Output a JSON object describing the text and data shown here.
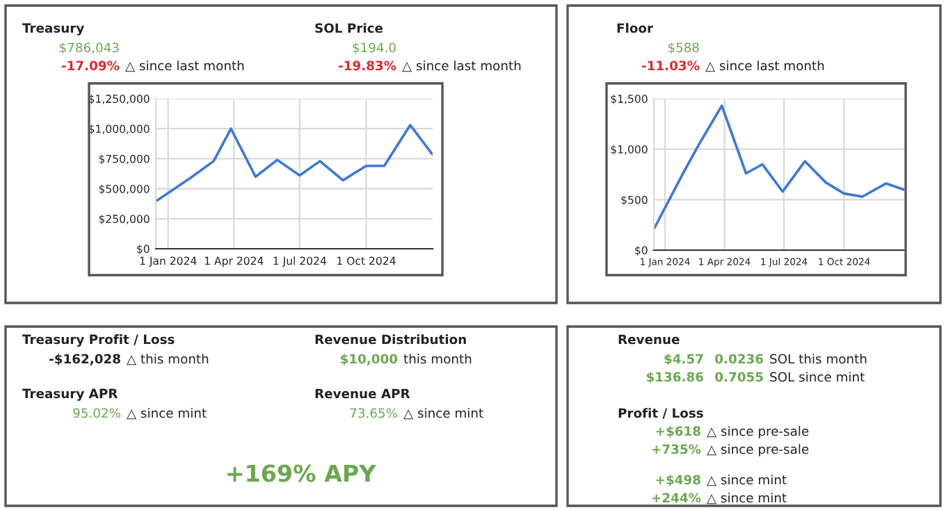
{
  "chart_data": [
    {
      "type": "line",
      "title": "Treasury",
      "annotations": [
        "$786,043",
        "-17.09%",
        "△ since last month",
        "SOL Price",
        "$194.0",
        "-19.83%",
        "△ since last month"
      ],
      "x": [
        "2023-12-16",
        "2024-02-01",
        "2024-03-04",
        "2024-03-28",
        "2024-05-01",
        "2024-05-31",
        "2024-07-01",
        "2024-07-29",
        "2024-08-30",
        "2024-10-01",
        "2024-10-26",
        "2024-12-01",
        "2024-12-31"
      ],
      "series": [
        {
          "color": "#3c78d8",
          "values": [
            400000,
            590000,
            730000,
            1000000,
            600000,
            740000,
            610000,
            730000,
            570000,
            690000,
            690000,
            1030000,
            790000
          ]
        }
      ],
      "xlim": [
        "2023-12-15",
        "2025-01-01"
      ],
      "xticks": [
        {
          "value": "2024-01-01",
          "label": "1 Jan 2024"
        },
        {
          "value": "2024-04-01",
          "label": "1 Apr 2024"
        },
        {
          "value": "2024-07-01",
          "label": "1 Jul 2024"
        },
        {
          "value": "2024-10-01",
          "label": "1 Oct 2024"
        }
      ],
      "ylim": [
        0,
        1250000
      ],
      "yticks": [
        {
          "value": 0,
          "label": "$0"
        },
        {
          "value": 250000,
          "label": "$250,000"
        },
        {
          "value": 500000,
          "label": "$500,000"
        },
        {
          "value": 750000,
          "label": "$750,000"
        },
        {
          "value": 1000000,
          "label": "$1,000,000"
        },
        {
          "value": 1250000,
          "label": "$1,250,000"
        }
      ],
      "grid": true,
      "legend": false
    },
    {
      "type": "line",
      "title": "Floor",
      "annotations": [
        "$588",
        "-11.03%",
        "△ since last month"
      ],
      "x": [
        "2023-12-16",
        "2024-01-27",
        "2024-02-24",
        "2024-03-28",
        "2024-05-04",
        "2024-05-29",
        "2024-06-29",
        "2024-08-02",
        "2024-09-03",
        "2024-10-01",
        "2024-10-29",
        "2024-12-04",
        "2024-12-31"
      ],
      "series": [
        {
          "color": "#3c78d8",
          "values": [
            220,
            740,
            1070,
            1430,
            760,
            850,
            580,
            880,
            670,
            560,
            530,
            660,
            600
          ]
        }
      ],
      "xlim": [
        "2023-12-15",
        "2025-01-01"
      ],
      "xticks": [
        {
          "value": "2024-01-01",
          "label": "1 Jan 2024"
        },
        {
          "value": "2024-04-01",
          "label": "1 Apr 2024"
        },
        {
          "value": "2024-07-01",
          "label": "1 Jul 2024"
        },
        {
          "value": "2024-10-01",
          "label": "1 Oct 2024"
        }
      ],
      "ylim": [
        0,
        1500
      ],
      "yticks": [
        {
          "value": 0,
          "label": "$0"
        },
        {
          "value": 500,
          "label": "$500"
        },
        {
          "value": 1000,
          "label": "$1,000"
        },
        {
          "value": 1500,
          "label": "$1,500"
        }
      ],
      "grid": true,
      "legend": false
    },
    {
      "type": "other",
      "title": "Treasury Profit / Loss",
      "annotations": [
        "-$162,028",
        "△ this month",
        "Revenue Distribution",
        "$10,000",
        "this month",
        "Treasury APR",
        "95.02%",
        "△ since mint",
        "Revenue APR",
        "73.65%",
        "△ since mint",
        "+169% APY"
      ]
    },
    {
      "type": "other",
      "title": "Revenue",
      "annotations": [
        "$4.57",
        "0.0236",
        "SOL this month",
        "$136.86",
        "0.7055",
        "SOL since mint",
        "Profit / Loss",
        "+$618",
        "△ since pre-sale",
        "+735%",
        "△ since pre-sale",
        "+$498",
        "△ since mint",
        "+244%",
        "△ since mint"
      ]
    }
  ]
}
